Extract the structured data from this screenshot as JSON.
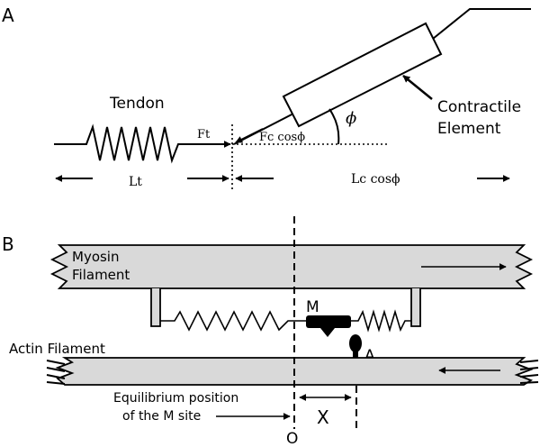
{
  "panel_a": {
    "label": "A",
    "tendon_label": "Tendon",
    "ft_label": "Ft",
    "fc_label": "Fc cosϕ",
    "phi_label": "ϕ",
    "contractile_line1": "Contractile",
    "contractile_line2": "Element",
    "lt_label": "Lt",
    "lc_label": "Lc cosϕ"
  },
  "panel_b": {
    "label": "B",
    "myosin_line1": "Myosin",
    "myosin_line2": "Filament",
    "actin_label": "Actin Filament",
    "m_label": "M",
    "a_label": "A",
    "equilibrium_line1": "Equilibrium position",
    "equilibrium_line2": "of the M site",
    "x_label": "X",
    "o_label": "O"
  }
}
